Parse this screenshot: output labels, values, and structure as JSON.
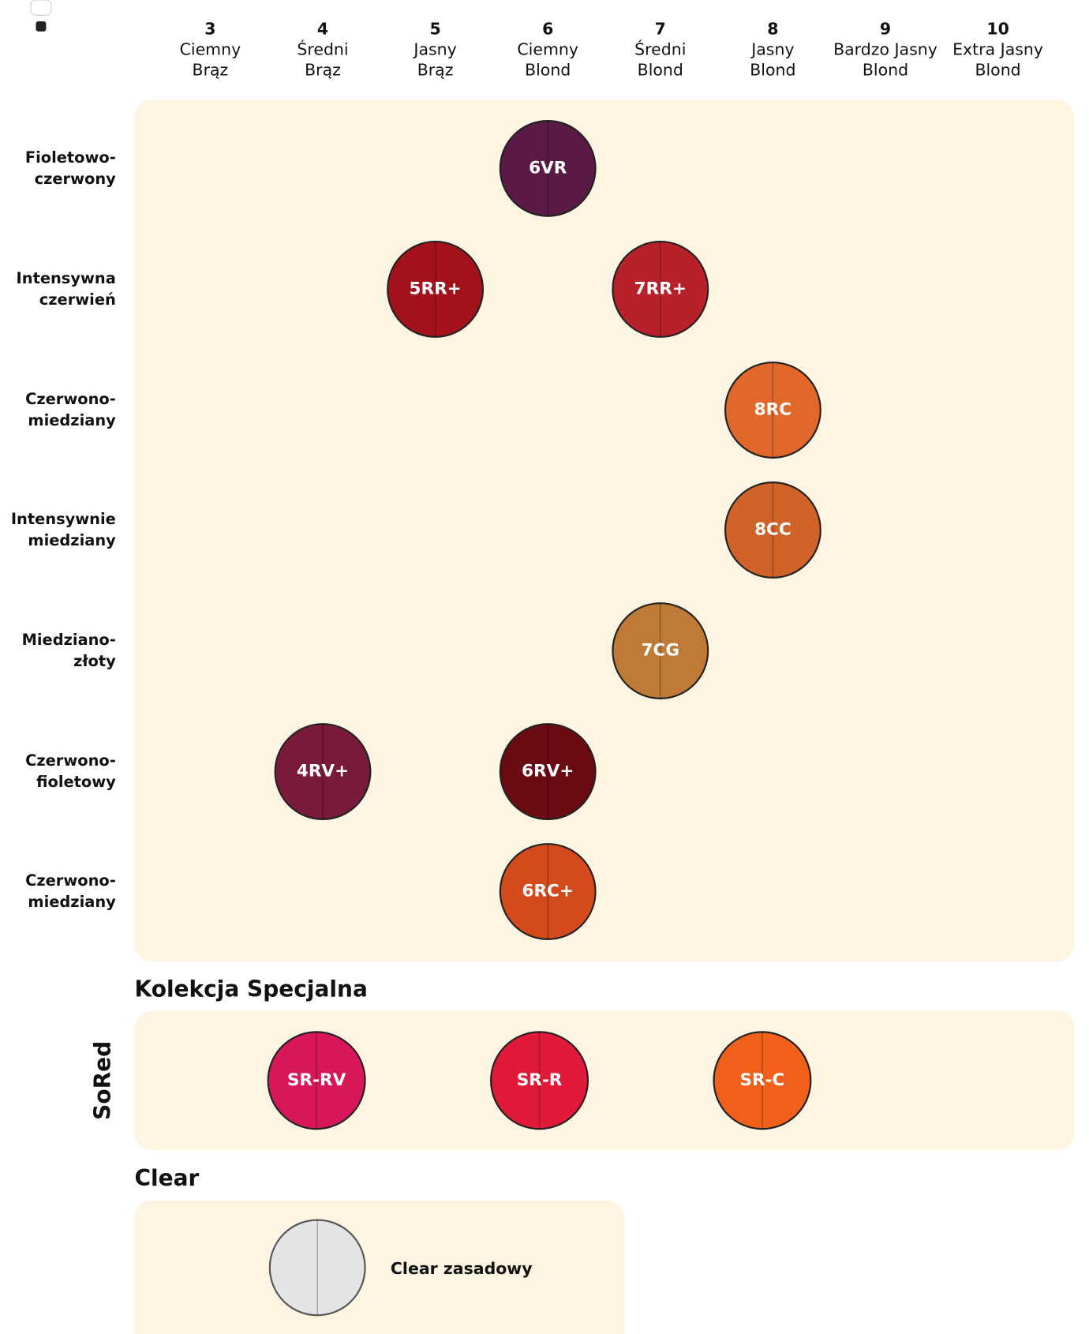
{
  "columns": [
    {
      "number": "3",
      "name": [
        "Ciemny",
        "Brąz"
      ]
    },
    {
      "number": "4",
      "name": [
        "Średni",
        "Brąz"
      ]
    },
    {
      "number": "5",
      "name": [
        "Jasny",
        "Brąz"
      ]
    },
    {
      "number": "6",
      "name": [
        "Ciemny",
        "Blond"
      ]
    },
    {
      "number": "7",
      "name": [
        "Średni",
        "Blond"
      ]
    },
    {
      "number": "8",
      "name": [
        "Jasny",
        "Blond"
      ]
    },
    {
      "number": "9",
      "name": [
        "Bardzo Jasny",
        "Blond"
      ]
    },
    {
      "number": "10",
      "name": [
        "Extra Jasny",
        "Blond"
      ]
    }
  ],
  "rows": [
    {
      "label": [
        "Fioletowo-",
        "czerwony"
      ],
      "cells": [
        null,
        null,
        null,
        {
          "code": "6VR",
          "color": "#5a1a45"
        },
        null,
        null,
        null,
        null
      ]
    },
    {
      "label": [
        "Intensywna",
        "czerwień"
      ],
      "cells": [
        null,
        null,
        {
          "code": "5RR+",
          "color": "#a3121a"
        },
        null,
        {
          "code": "7RR+",
          "color": "#b8202a"
        },
        null,
        null,
        null
      ]
    },
    {
      "label": [
        "Czerwono-",
        "miedziany"
      ],
      "cells": [
        null,
        null,
        null,
        null,
        null,
        {
          "code": "8RC",
          "color": "#e2672a"
        },
        null,
        null
      ]
    },
    {
      "label": [
        "Intensywnie",
        "miedziany"
      ],
      "cells": [
        null,
        null,
        null,
        null,
        null,
        {
          "code": "8CC",
          "color": "#d0622a"
        },
        null,
        null
      ]
    },
    {
      "label": [
        "Miedziano-",
        "złoty"
      ],
      "cells": [
        null,
        null,
        null,
        null,
        {
          "code": "7CG",
          "color": "#c07a38"
        },
        null,
        null,
        null
      ]
    },
    {
      "label": [
        "Czerwono-",
        "fioletowy"
      ],
      "cells": [
        null,
        {
          "code": "4RV+",
          "color": "#7a1a3a"
        },
        null,
        {
          "code": "6RV+",
          "color": "#6a0a12"
        },
        null,
        null,
        null,
        null
      ]
    },
    {
      "label": [
        "Czerwono-",
        "miedziany"
      ],
      "cells": [
        null,
        null,
        null,
        {
          "code": "6RC+",
          "color": "#d44a1c"
        },
        null,
        null,
        null,
        null
      ]
    }
  ],
  "special": {
    "title": "Kolekcja Specjalna",
    "rows": [
      {
        "label": "SoRed",
        "swatches": [
          {
            "code": "SR-RV",
            "color": "#d8175a"
          },
          {
            "code": "SR-R",
            "color": "#e01a38"
          },
          {
            "code": "SR-C",
            "color": "#f0601a"
          }
        ]
      }
    ]
  },
  "clear": {
    "title": "Clear",
    "swatches": [
      {
        "label": "Clear zasadowy",
        "color": "#e4e4e4"
      }
    ]
  }
}
